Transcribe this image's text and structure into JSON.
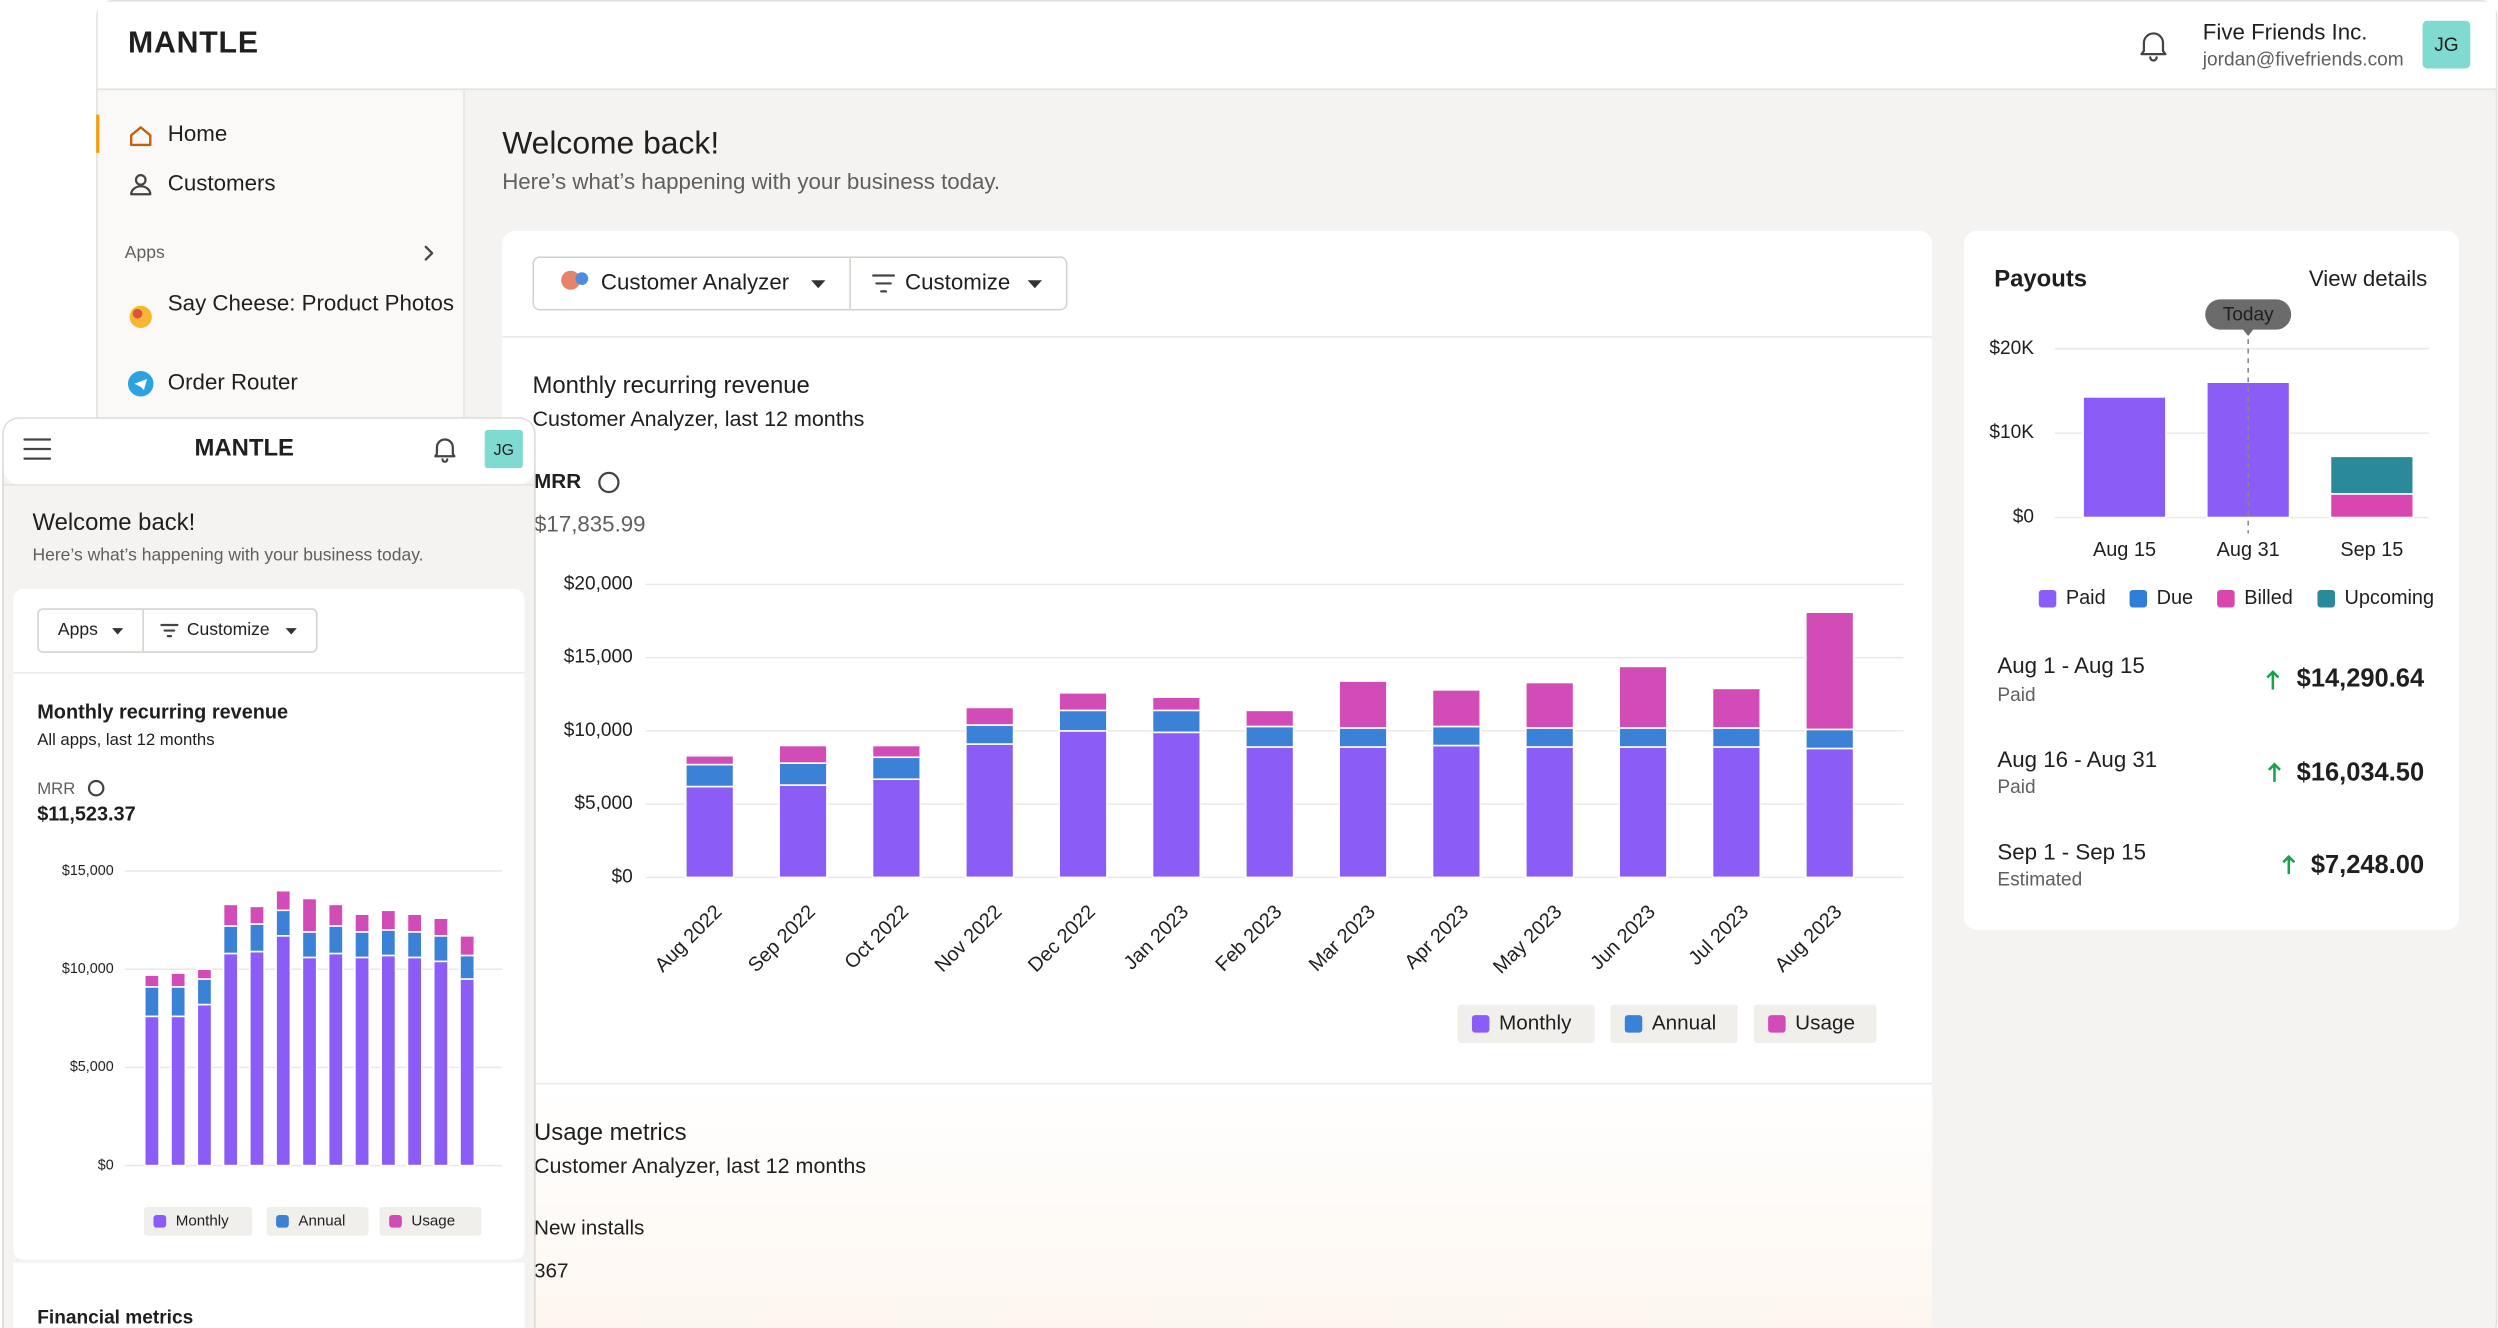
{
  "header": {
    "logo": "MANTLE",
    "company": "Five Friends Inc.",
    "email": "jordan@fivefriends.com",
    "avatar": "JG"
  },
  "sidebar": {
    "items": [
      "Home",
      "Customers"
    ],
    "apps_label": "Apps",
    "apps": [
      "Say Cheese: Product Photos",
      "Order Router"
    ]
  },
  "main": {
    "title": "Welcome back!",
    "subtitle": "Here’s what’s happening with your business today.",
    "buttons": [
      "Customer Analyzer",
      "Customize"
    ],
    "usage": {
      "title": "Usage metrics",
      "subtitle": "Customer Analyzer, last 12 months",
      "metric": "New installs",
      "value": "367"
    }
  },
  "payouts_list": [
    {
      "period": "Aug 1 - Aug 15",
      "status": "Paid",
      "amount": "$14,290.64"
    },
    {
      "period": "Aug 16 - Aug 31",
      "status": "Paid",
      "amount": "$16,034.50"
    },
    {
      "period": "Sep 1 - Sep 15",
      "status": "Estimated",
      "amount": "$7,248.00"
    }
  ],
  "mobile": {
    "logo": "MANTLE",
    "avatar": "JG",
    "title": "Welcome back!",
    "subtitle": "Here’s what’s happening with your business today.",
    "buttons": [
      "Apps",
      "Customize"
    ],
    "next_section": "Financial metrics"
  },
  "chart_data": [
    {
      "type": "bar",
      "stacked": true,
      "grid": true,
      "title": "Monthly recurring revenue",
      "subtitle": "Customer Analyzer, last 12 months",
      "metric_label": "MRR",
      "metric_value": "$17,835.99",
      "categories": [
        "Aug 2022",
        "Sep 2022",
        "Oct 2022",
        "Nov 2022",
        "Dec 2022",
        "Jan 2023",
        "Feb 2023",
        "Mar 2023",
        "Apr 2023",
        "May 2023",
        "Jun 2023",
        "Jul 2023",
        "Aug 2023"
      ],
      "series": [
        {
          "name": "Monthly",
          "color": "#8b5cf6",
          "values": [
            6200,
            6300,
            6700,
            9100,
            10000,
            9900,
            8900,
            8900,
            9000,
            8900,
            8900,
            8900,
            8800
          ]
        },
        {
          "name": "Annual",
          "color": "#3b82d6",
          "values": [
            1500,
            1500,
            1500,
            1300,
            1400,
            1500,
            1400,
            1300,
            1300,
            1300,
            1300,
            1300,
            1300
          ]
        },
        {
          "name": "Usage",
          "color": "#d24cb8",
          "values": [
            600,
            1200,
            800,
            1200,
            1200,
            900,
            1100,
            3200,
            2500,
            3100,
            4200,
            2700,
            8000
          ]
        }
      ],
      "ylim": [
        0,
        20000
      ],
      "yticks": [
        {
          "value": 0,
          "label": "$0"
        },
        {
          "value": 5000,
          "label": "$5,000"
        },
        {
          "value": 10000,
          "label": "$10,000"
        },
        {
          "value": 15000,
          "label": "$15,000"
        },
        {
          "value": 20000,
          "label": "$20,000"
        }
      ]
    },
    {
      "type": "bar",
      "stacked": true,
      "grid": true,
      "title": "Payouts",
      "link": "View details",
      "annotation": "Today",
      "categories": [
        "Aug 15",
        "Aug 31",
        "Sep 15"
      ],
      "series": [
        {
          "name": "Paid",
          "color": "#8b5cf6",
          "values": [
            14290.64,
            16034.5,
            0
          ]
        },
        {
          "name": "Due",
          "color": "#2f7fd8",
          "values": [
            0,
            0,
            0
          ]
        },
        {
          "name": "Billed",
          "color": "#d946b0",
          "values": [
            0,
            0,
            2800
          ]
        },
        {
          "name": "Upcoming",
          "color": "#2a8a9a",
          "values": [
            0,
            0,
            4448
          ]
        }
      ],
      "ylim": [
        0,
        20000
      ],
      "yticks": [
        {
          "value": 0,
          "label": "$0"
        },
        {
          "value": 10000,
          "label": "$10K"
        },
        {
          "value": 20000,
          "label": "$20K"
        }
      ]
    },
    {
      "type": "bar",
      "stacked": true,
      "grid": true,
      "title": "Monthly recurring revenue",
      "subtitle": "All apps, last 12 months",
      "metric_label": "MRR",
      "metric_value": "$11,523.37",
      "series": [
        {
          "name": "Monthly",
          "color": "#8b5cf6",
          "values": [
            7600,
            7600,
            8200,
            10800,
            10900,
            11700,
            10600,
            10800,
            10600,
            10700,
            10600,
            10400,
            9500
          ]
        },
        {
          "name": "Annual",
          "color": "#3b82d6",
          "values": [
            1500,
            1500,
            1300,
            1400,
            1400,
            1300,
            1300,
            1400,
            1300,
            1300,
            1300,
            1300,
            1200
          ]
        },
        {
          "name": "Usage",
          "color": "#d24cb8",
          "values": [
            600,
            700,
            500,
            1100,
            900,
            1000,
            1700,
            1100,
            900,
            1000,
            900,
            900,
            1000
          ]
        }
      ],
      "ylim": [
        0,
        15000
      ],
      "yticks": [
        {
          "value": 0,
          "label": "$0"
        },
        {
          "value": 5000,
          "label": "$5,000"
        },
        {
          "value": 10000,
          "label": "$10,000"
        },
        {
          "value": 15000,
          "label": "$15,000"
        }
      ]
    }
  ]
}
